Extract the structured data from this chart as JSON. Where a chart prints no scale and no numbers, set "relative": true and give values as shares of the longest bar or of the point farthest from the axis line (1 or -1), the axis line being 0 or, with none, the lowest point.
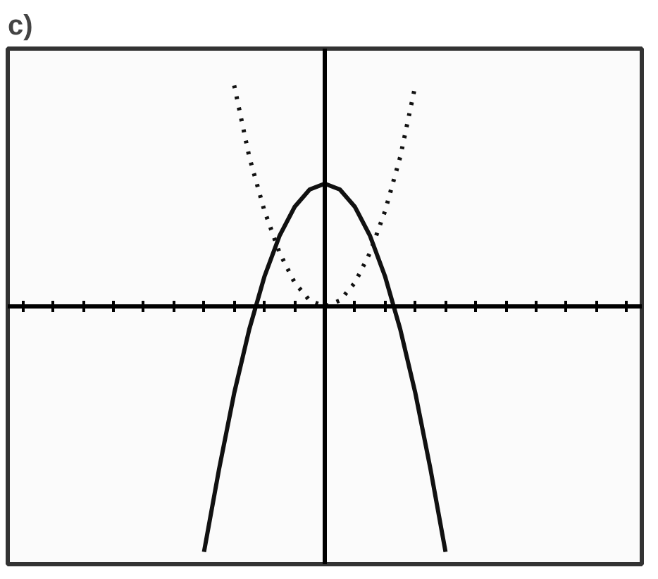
{
  "chart_data": {
    "type": "line",
    "title": "c)",
    "relative": true,
    "grid": false,
    "categories": [
      null,
      null,
      null,
      null,
      null,
      null,
      null,
      null,
      null,
      null,
      null,
      null,
      null,
      null,
      null,
      null,
      null,
      null,
      null,
      null,
      null,
      null,
      null,
      null,
      null,
      null,
      null,
      null,
      null,
      null,
      null,
      null,
      null,
      null,
      null,
      null,
      null,
      null,
      null,
      null,
      null
    ],
    "series": [
      {
        "color": "#111111",
        "line_style": "dotted",
        "values": [
          null,
          null,
          null,
          null,
          null,
          null,
          null,
          null,
          null,
          null,
          null,
          null,
          null,
          null,
          0.9,
          0.609,
          0.39,
          0.219,
          0.097,
          0.024,
          0,
          0.024,
          0.097,
          0.219,
          0.39,
          0.609,
          0.9,
          null,
          null,
          null,
          null,
          null,
          null,
          null,
          null,
          null,
          null,
          null,
          null,
          null,
          null
        ]
      },
      {
        "color": "#111111",
        "line_style": "solid",
        "values": [
          null,
          null,
          null,
          null,
          null,
          null,
          null,
          null,
          null,
          null,
          null,
          null,
          -1,
          -0.662,
          -0.353,
          -0.093,
          0.121,
          0.287,
          0.405,
          0.476,
          0.5,
          0.476,
          0.405,
          0.287,
          0.121,
          -0.093,
          -0.353,
          -0.662,
          -1,
          null,
          null,
          null,
          null,
          null,
          null,
          null,
          null,
          null,
          null,
          null,
          null
        ]
      }
    ]
  }
}
